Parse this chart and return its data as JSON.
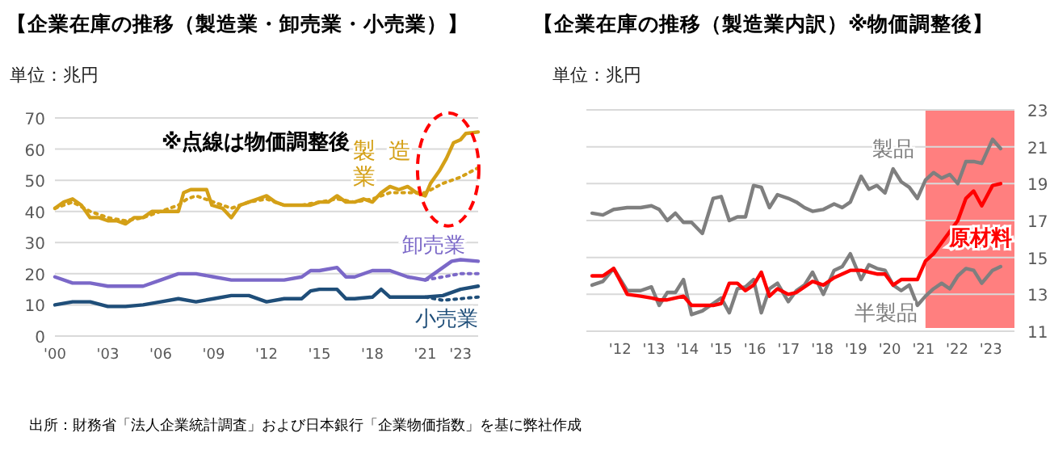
{
  "chart_data": [
    {
      "type": "line",
      "title": "【企業在庫の推移（製造業・卸売業・小売業）】",
      "subtitle": "単位：兆円",
      "annotations": [
        "※点線は物価調整後",
        "出所：財務省「法人企業統計調査」および日本銀行「企業物価指数」を基に弊社作成"
      ],
      "xlim": [
        2000,
        2024
      ],
      "xticks": [
        {
          "value": 2000,
          "label": "'00"
        },
        {
          "value": 2003,
          "label": "'03"
        },
        {
          "value": 2006,
          "label": "'06"
        },
        {
          "value": 2009,
          "label": "'09"
        },
        {
          "value": 2012,
          "label": "'12"
        },
        {
          "value": 2015,
          "label": "'15"
        },
        {
          "value": 2018,
          "label": "'18"
        },
        {
          "value": 2021,
          "label": "'21"
        },
        {
          "value": 2023,
          "label": "'23"
        }
      ],
      "ylim": [
        0,
        70
      ],
      "yticks": [
        0,
        10,
        20,
        30,
        40,
        50,
        60,
        70
      ],
      "grid": "y",
      "legend": false,
      "series": [
        {
          "name": "製造業",
          "color": "#d4a017",
          "line_style": "solid",
          "x": [
            2000,
            2000.5,
            2001,
            2001.5,
            2002,
            2002.5,
            2003,
            2003.5,
            2004,
            2004.5,
            2005,
            2005.5,
            2006,
            2006.5,
            2007,
            2007.3,
            2007.7,
            2008,
            2008.6,
            2008.9,
            2009.5,
            2010,
            2010.5,
            2011,
            2011.5,
            2012,
            2012.5,
            2013,
            2013.5,
            2014,
            2014.5,
            2015,
            2015.5,
            2016,
            2016.5,
            2017,
            2017.5,
            2018,
            2018.5,
            2019,
            2019.5,
            2020,
            2020.5,
            2021,
            2021.3,
            2021.8,
            2022.2,
            2022.6,
            2023,
            2023.3,
            2024
          ],
          "values": [
            41,
            43,
            44,
            42,
            38,
            38,
            37,
            37,
            36,
            38,
            38,
            40,
            40,
            40,
            40,
            46,
            47,
            47,
            47,
            42,
            41,
            38,
            42,
            43,
            44,
            45,
            43,
            42,
            42,
            42,
            42,
            43,
            43,
            45,
            43,
            43,
            44,
            43,
            46,
            48,
            47,
            48,
            46,
            45,
            49,
            53,
            57,
            62,
            63,
            65,
            65.5
          ]
        },
        {
          "color": "#d4a017",
          "line_style": "dotted",
          "x": [
            2000,
            2001,
            2002,
            2003,
            2004,
            2005,
            2006,
            2007,
            2007.5,
            2008,
            2009,
            2010,
            2011,
            2012,
            2013,
            2014,
            2015,
            2016,
            2017,
            2018,
            2019,
            2020,
            2021,
            2022,
            2023,
            2024
          ],
          "values": [
            41,
            43,
            40,
            38,
            37,
            38,
            40,
            42,
            44,
            45,
            43,
            41,
            43,
            44,
            42,
            42,
            43,
            44,
            43,
            44,
            46,
            46,
            46,
            49,
            51,
            54
          ]
        },
        {
          "name": "卸売業",
          "color": "#7b68c8",
          "line_style": "solid",
          "x": [
            2000,
            2001,
            2002,
            2003,
            2004,
            2005,
            2006,
            2007,
            2008,
            2009,
            2010,
            2011,
            2012,
            2013,
            2014,
            2014.5,
            2015,
            2016,
            2016.5,
            2017,
            2018,
            2019,
            2020,
            2021,
            2021.5,
            2022,
            2022.5,
            2023,
            2024
          ],
          "values": [
            19,
            17,
            17,
            16,
            16,
            16,
            18,
            20,
            20,
            19,
            18,
            18,
            18,
            18,
            19,
            21,
            21,
            22,
            19,
            19,
            21,
            21,
            19,
            18,
            20,
            22,
            24,
            24.5,
            24
          ]
        },
        {
          "color": "#7b68c8",
          "line_style": "dotted",
          "x": [
            2021,
            2022,
            2023,
            2024
          ],
          "values": [
            18,
            19,
            20,
            20
          ]
        },
        {
          "name": "小売業",
          "color": "#1f4e79",
          "line_style": "solid",
          "x": [
            2000,
            2001,
            2002,
            2003,
            2004,
            2005,
            2006,
            2007,
            2008,
            2009,
            2010,
            2011,
            2012,
            2013,
            2014,
            2014.5,
            2015,
            2016,
            2016.5,
            2017,
            2018,
            2018.5,
            2019,
            2020,
            2021,
            2022,
            2023,
            2024
          ],
          "values": [
            10,
            11,
            11,
            9.5,
            9.5,
            10,
            11,
            12,
            11,
            12,
            13,
            13,
            11,
            12,
            12,
            14.5,
            15,
            15,
            12,
            12,
            12.5,
            15,
            12.5,
            12.5,
            12.5,
            13,
            15,
            16
          ]
        },
        {
          "color": "#1f4e79",
          "line_style": "dotted",
          "x": [
            2021,
            2022,
            2023,
            2024
          ],
          "values": [
            12.5,
            11.5,
            12,
            12.5
          ]
        }
      ]
    },
    {
      "type": "line",
      "title": "【企業在庫の推移（製造業内訳）※物価調整後】",
      "subtitle": "単位：兆円",
      "xlim": [
        2011,
        2023.7
      ],
      "xticks": [
        {
          "value": 2012,
          "label": "'12"
        },
        {
          "value": 2013,
          "label": "'13"
        },
        {
          "value": 2014,
          "label": "'14"
        },
        {
          "value": 2015,
          "label": "'15"
        },
        {
          "value": 2016,
          "label": "'16"
        },
        {
          "value": 2017,
          "label": "'17"
        },
        {
          "value": 2018,
          "label": "'18"
        },
        {
          "value": 2019,
          "label": "'19"
        },
        {
          "value": 2020,
          "label": "'20"
        },
        {
          "value": 2021,
          "label": "'21"
        },
        {
          "value": 2022,
          "label": "'22"
        },
        {
          "value": 2023,
          "label": "'23"
        }
      ],
      "ylim": [
        11,
        23
      ],
      "yticks": [
        11,
        13,
        15,
        17,
        19,
        21,
        23
      ],
      "grid": "y",
      "legend": false,
      "bands": [
        {
          "axis": "x",
          "from": 2021.06,
          "to": 2023.7,
          "color": "#ff7f7f"
        }
      ],
      "x": [
        2011.17,
        2011.49,
        2011.81,
        2012.21,
        2012.61,
        2012.93,
        2013.16,
        2013.4,
        2013.64,
        2013.88,
        2014.12,
        2014.44,
        2014.76,
        2015,
        2015.24,
        2015.48,
        2015.72,
        2015.96,
        2016.19,
        2016.43,
        2016.67,
        2016.99,
        2017.23,
        2017.47,
        2017.71,
        2018.03,
        2018.35,
        2018.59,
        2018.83,
        2019.15,
        2019.38,
        2019.62,
        2019.86,
        2020.1,
        2020.34,
        2020.58,
        2020.82,
        2021.06,
        2021.3,
        2021.54,
        2021.78,
        2022.02,
        2022.26,
        2022.49,
        2022.73,
        2023.05,
        2023.29
      ],
      "series": [
        {
          "name": "製品",
          "color": "#7f7f7f",
          "line_style": "solid",
          "values": [
            17.4,
            17.3,
            17.6,
            17.7,
            17.7,
            17.8,
            17.6,
            17.0,
            17.4,
            16.9,
            16.9,
            16.3,
            18.2,
            18.3,
            17.0,
            17.2,
            17.2,
            18.9,
            18.8,
            17.7,
            18.4,
            18.2,
            18.0,
            17.7,
            17.5,
            17.6,
            17.9,
            17.7,
            18.0,
            19.4,
            18.7,
            18.9,
            18.5,
            19.8,
            19.1,
            18.8,
            18.2,
            19.2,
            19.6,
            19.3,
            19.5,
            19.0,
            20.2,
            20.2,
            20.1,
            21.4,
            20.9
          ]
        },
        {
          "name": "半製品",
          "color": "#7f7f7f",
          "line_style": "solid",
          "values": [
            13.5,
            13.7,
            14.4,
            13.2,
            13.2,
            13.4,
            12.4,
            13.1,
            13.1,
            13.8,
            11.9,
            12.1,
            12.5,
            12.8,
            12.0,
            13.3,
            13.4,
            13.8,
            12.0,
            13.3,
            13.6,
            12.6,
            13.2,
            13.5,
            14.2,
            13.0,
            14.3,
            14.5,
            15.2,
            13.8,
            14.6,
            14.4,
            14.3,
            13.5,
            13.2,
            13.5,
            12.4,
            12.9,
            13.3,
            13.6,
            13.3,
            14.0,
            14.4,
            14.3,
            13.6,
            14.3,
            14.5
          ]
        },
        {
          "name": "原材料",
          "color": "#ff0000",
          "line_style": "solid",
          "values": [
            14.0,
            14.0,
            14.4,
            13.0,
            12.9,
            12.8,
            12.7,
            12.7,
            12.8,
            12.9,
            12.4,
            12.4,
            12.4,
            12.5,
            13.6,
            13.6,
            13.2,
            13.5,
            14.2,
            12.9,
            13.3,
            13.0,
            13.1,
            13.4,
            13.7,
            13.5,
            13.9,
            14.1,
            14.3,
            14.3,
            14.2,
            14.1,
            14.1,
            13.5,
            13.8,
            13.8,
            13.8,
            14.8,
            15.2,
            15.8,
            16.4,
            17.0,
            18.2,
            18.6,
            17.8,
            18.9,
            19.0
          ]
        }
      ]
    }
  ]
}
